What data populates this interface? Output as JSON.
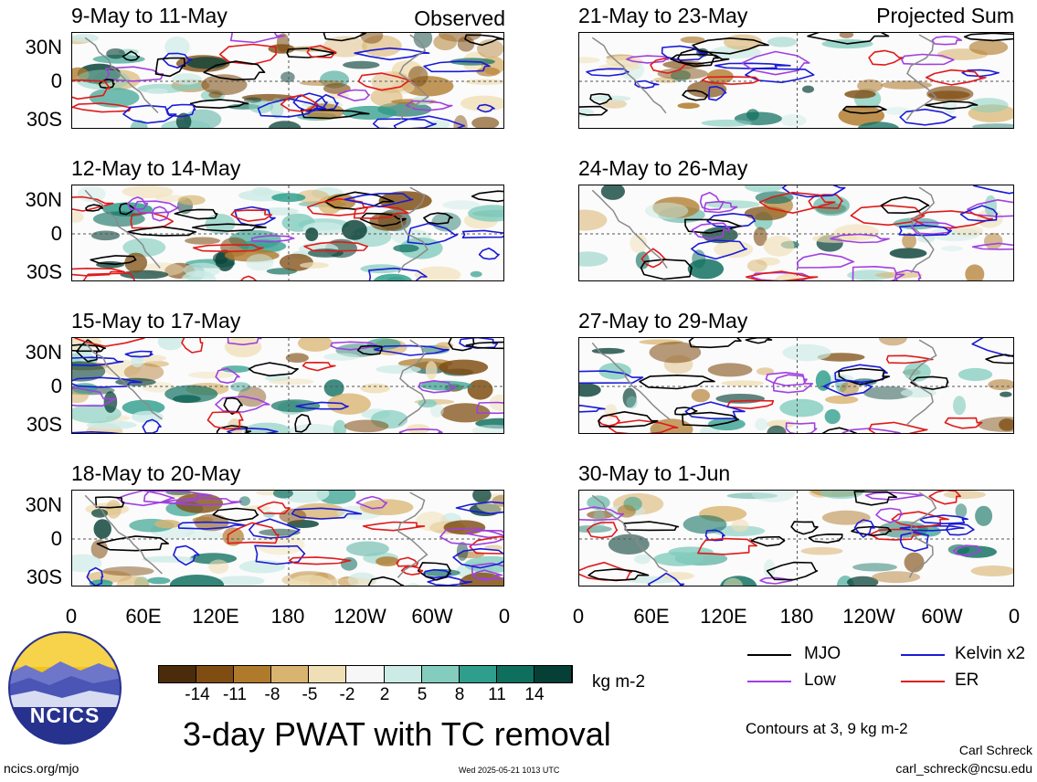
{
  "panels": [
    {
      "title": "9-May to 11-May",
      "corner": "Observed"
    },
    {
      "title": "12-May to 14-May",
      "corner": ""
    },
    {
      "title": "15-May to 17-May",
      "corner": ""
    },
    {
      "title": "18-May to 20-May",
      "corner": ""
    },
    {
      "title": "21-May to 23-May",
      "corner": "Projected Sum"
    },
    {
      "title": "24-May to 26-May",
      "corner": ""
    },
    {
      "title": "27-May to 29-May",
      "corner": ""
    },
    {
      "title": "30-May to 1-Jun",
      "corner": ""
    }
  ],
  "lat_labels": [
    "30N",
    "0",
    "30S"
  ],
  "lon_labels": [
    "0",
    "60E",
    "120E",
    "180",
    "120W",
    "60W",
    "0"
  ],
  "colorbar": {
    "labels": [
      "-14",
      "-11",
      "-8",
      "-5",
      "-2",
      "2",
      "5",
      "8",
      "11",
      "14"
    ],
    "colors": [
      "#4a2c0c",
      "#7f4d12",
      "#b07a2c",
      "#d9b470",
      "#f0dfb6",
      "#f7f7f7",
      "#cdebe6",
      "#84cdbe",
      "#2f9e8c",
      "#0f6f5f",
      "#063f35"
    ],
    "units": "kg m-2"
  },
  "legend": [
    {
      "label": "MJO",
      "color": "#000000"
    },
    {
      "label": "Kelvin x2",
      "color": "#1a1ad6"
    },
    {
      "label": "Low",
      "color": "#a040e0"
    },
    {
      "label": "ER",
      "color": "#e01a1a"
    }
  ],
  "logo_text": "NCICS",
  "main_title": "3-day PWAT with TC removal",
  "contours_note": "Contours at 3, 9 kg m-2",
  "author": "Carl Schreck",
  "email": "carl_schreck@ncsu.edu",
  "site": "ncics.org/mjo",
  "timestamp": "Wed 2025-05-21 1013 UTC"
}
